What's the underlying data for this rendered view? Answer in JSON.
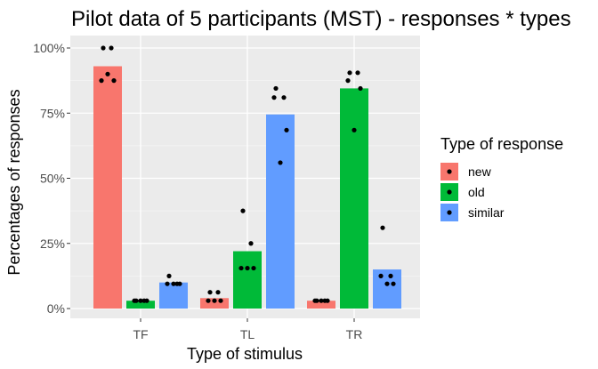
{
  "chart_data": {
    "type": "bar",
    "title": "Pilot data of 5 participants (MST) - responses * types",
    "xlabel": "Type of stimulus",
    "ylabel": "Percentages of responses",
    "categories": [
      "TF",
      "TL",
      "TR"
    ],
    "ylim": [
      0,
      1
    ],
    "yticks": [
      0,
      0.25,
      0.5,
      0.75,
      1.0
    ],
    "ytick_labels": [
      "0%",
      "25%",
      "50%",
      "75%",
      "100%"
    ],
    "legend_title": "Type of response",
    "legend_position": "right",
    "grid": true,
    "panel_background": "#ebebeb",
    "series": [
      {
        "name": "new",
        "color": "#f8766d",
        "values": [
          0.93,
          0.04,
          0.03
        ],
        "points": [
          [
            1.0,
            1.0,
            0.875,
            0.875,
            0.9
          ],
          [
            0.0625,
            0.0625,
            0.03,
            0.03,
            0.03
          ],
          [
            0.03,
            0.03,
            0.03,
            0.03,
            0.03
          ]
        ]
      },
      {
        "name": "old",
        "color": "#00ba38",
        "values": [
          0.03,
          0.22,
          0.845
        ],
        "points": [
          [
            0.03,
            0.03,
            0.03,
            0.03,
            0.03
          ],
          [
            0.375,
            0.25,
            0.155,
            0.155,
            0.155
          ],
          [
            0.905,
            0.905,
            0.875,
            0.845,
            0.685
          ]
        ]
      },
      {
        "name": "similar",
        "color": "#619cff",
        "values": [
          0.1,
          0.745,
          0.15
        ],
        "points": [
          [
            0.125,
            0.095,
            0.095,
            0.095,
            0.095
          ],
          [
            0.845,
            0.81,
            0.81,
            0.685,
            0.56
          ],
          [
            0.31,
            0.125,
            0.125,
            0.095,
            0.095
          ]
        ]
      }
    ]
  }
}
